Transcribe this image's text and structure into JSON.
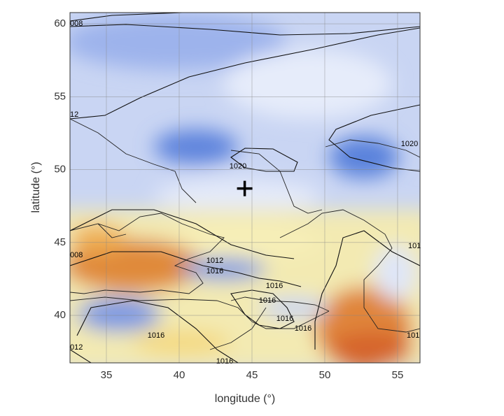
{
  "map": {
    "xlabel": "longitude (°)",
    "ylabel": "latitude (°)",
    "xlim": [
      32.5,
      56.54
    ],
    "ylim": [
      36.74,
      60.77
    ],
    "xticks": [
      35,
      40,
      45,
      50,
      55
    ],
    "yticks": [
      40,
      45,
      50,
      55,
      60
    ],
    "marker": {
      "lon": 44.5,
      "lat": 48.7
    },
    "contour_labels": [
      "008",
      "12",
      "1020",
      "1020",
      "101",
      "008",
      "1012",
      "1016",
      "1016",
      "1016",
      "1016",
      "1016",
      "101",
      "012",
      "1016",
      "1016"
    ]
  }
}
